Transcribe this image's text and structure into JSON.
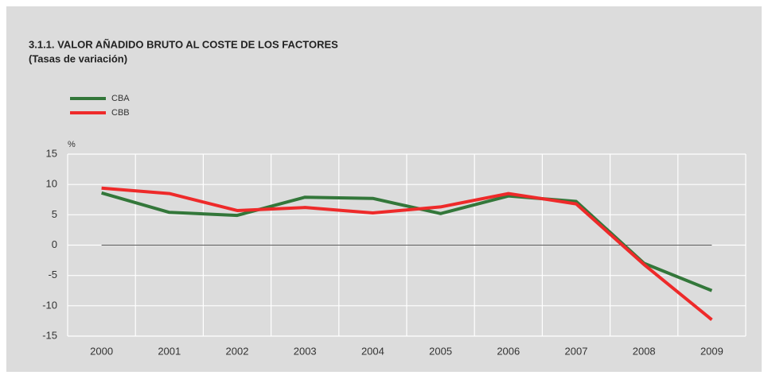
{
  "chart_data": {
    "type": "line",
    "title": "3.1.1. VALOR AÑADIDO BRUTO AL COSTE DE LOS FACTORES",
    "subtitle": "(Tasas de variación)",
    "y_label": "%",
    "categories": [
      "2000",
      "2001",
      "2002",
      "2003",
      "2004",
      "2005",
      "2006",
      "2007",
      "2008",
      "2009"
    ],
    "series": [
      {
        "name": "CBA",
        "color": "#33773a",
        "values": [
          8.6,
          5.4,
          4.9,
          7.9,
          7.7,
          5.2,
          8.1,
          7.2,
          -3.0,
          -7.5
        ]
      },
      {
        "name": "CBB",
        "color": "#ee2a2a",
        "values": [
          9.4,
          8.5,
          5.7,
          6.2,
          5.3,
          6.3,
          8.5,
          6.8,
          -3.2,
          -12.3
        ]
      }
    ],
    "ylim": [
      -15,
      15
    ],
    "yticks": [
      -15,
      -10,
      -5,
      0,
      5,
      10,
      15
    ],
    "grid": true,
    "legend": "top-left"
  }
}
